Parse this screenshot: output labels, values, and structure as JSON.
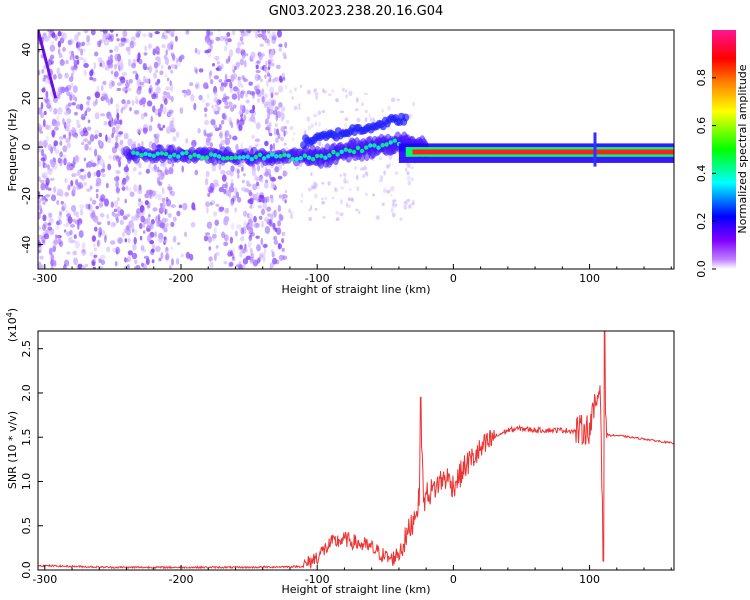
{
  "title": "GN03.2023.238.20.16.G04",
  "chart_data": [
    {
      "type": "heatmap",
      "title": "GN03.2023.238.20.16.G04",
      "xlabel": "Height of straight line (km)",
      "ylabel": "Frequency (Hz)",
      "xlim": [
        -305,
        162
      ],
      "ylim": [
        -50,
        48
      ],
      "x_ticks": [
        -300,
        -200,
        -100,
        0,
        100
      ],
      "y_ticks": [
        -40,
        -20,
        0,
        20,
        40
      ],
      "colorbar": {
        "label": "Normalized spectral amplitude",
        "range": [
          0.0,
          1.0
        ],
        "ticks": [
          "0.0",
          "0.2",
          "0.4",
          "0.6",
          "0.8"
        ],
        "colors": [
          "#ffffff",
          "#8000ff",
          "#0000ff",
          "#00ffff",
          "#00ff00",
          "#ffff00",
          "#ff8000",
          "#ff0000",
          "#ff1493"
        ]
      },
      "ridge": {
        "x": [
          -240,
          -200,
          -160,
          -120,
          -100,
          -80,
          -60,
          -40,
          -20,
          0,
          40,
          80,
          120,
          162
        ],
        "y": [
          -3,
          -3,
          -4,
          -4,
          -4,
          -2,
          0,
          2,
          0,
          -2,
          -2,
          -2,
          -2,
          -2
        ]
      },
      "grid": false
    },
    {
      "type": "line",
      "xlabel": "Height of straight line (km)",
      "ylabel": "SNR (10 * v/v)",
      "y_multiplier": "(x10",
      "y_multiplier_exp": "4",
      "y_multiplier_close": ")",
      "xlim": [
        -305,
        162
      ],
      "ylim": [
        0,
        2.7
      ],
      "x_ticks": [
        -300,
        -200,
        -100,
        0,
        100
      ],
      "y_ticks": [
        "0.0",
        "0.5",
        "1.0",
        "1.5",
        "2.0",
        "2.5"
      ],
      "color": "#ee3333",
      "series": [
        {
          "x": [
            -305,
            -250,
            -200,
            -150,
            -110,
            -100,
            -90,
            -80,
            -70,
            -60,
            -50,
            -45,
            -40,
            -35,
            -30,
            -25,
            -24,
            -22,
            -20,
            -15,
            -10,
            -5,
            0,
            10,
            20,
            30,
            40,
            50,
            60,
            70,
            80,
            90,
            100,
            105,
            108,
            110,
            111,
            112,
            115,
            120,
            140,
            162
          ],
          "y": [
            0.05,
            0.03,
            0.03,
            0.03,
            0.04,
            0.15,
            0.3,
            0.35,
            0.3,
            0.25,
            0.15,
            0.12,
            0.2,
            0.35,
            0.55,
            0.8,
            1.95,
            0.75,
            0.85,
            0.9,
            1.0,
            1.05,
            0.95,
            1.2,
            1.35,
            1.5,
            1.58,
            1.6,
            1.58,
            1.58,
            1.58,
            1.57,
            1.6,
            1.9,
            2.1,
            0.1,
            2.7,
            1.55,
            1.52,
            1.52,
            1.48,
            1.43
          ]
        }
      ],
      "grid": false
    }
  ]
}
